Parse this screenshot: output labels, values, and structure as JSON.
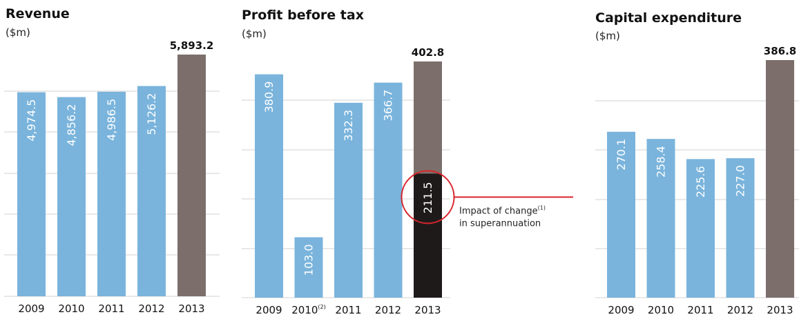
{
  "colors": {
    "bar_prior": "#7ab4dc",
    "bar_current": "#7c6f6b",
    "bar_impact": "#1f1a1a",
    "grid": "#d0d0d0",
    "highlight": "#d9252b"
  },
  "chart_data": [
    {
      "type": "bar",
      "title": "Revenue",
      "unit_label": "($m)",
      "categories": [
        "2009",
        "2010",
        "2011",
        "2012",
        "2013"
      ],
      "category_labels": [
        "2009",
        "2010",
        "2011",
        "2012",
        "2013"
      ],
      "values": [
        4974.5,
        4856.2,
        4986.5,
        5126.2,
        5893.2
      ],
      "value_labels": [
        "4,974.5",
        "4,856.2",
        "4,986.5",
        "5,126.2",
        "5,893.2"
      ],
      "ylim": [
        0,
        6000
      ],
      "grid": true
    },
    {
      "type": "bar",
      "title": "Profit before tax",
      "unit_label": "($m)",
      "categories": [
        "2009",
        "2010",
        "2011",
        "2012",
        "2013"
      ],
      "category_labels": [
        "2009",
        "2010",
        "2011",
        "2012",
        "2013"
      ],
      "category_footnotes": [
        "",
        "(2)",
        "",
        "",
        ""
      ],
      "values": [
        380.9,
        103.0,
        332.3,
        366.7,
        402.8
      ],
      "value_labels": [
        "380.9",
        "103.0",
        "332.3",
        "366.7",
        "402.8"
      ],
      "impact": {
        "category": "2013",
        "value": 211.5,
        "value_label": "211.5",
        "annotation_lines": [
          "Impact of change",
          "in superannuation"
        ],
        "annotation_footnote": "(1)"
      },
      "ylim": [
        0,
        430
      ],
      "grid": true
    },
    {
      "type": "bar",
      "title": "Capital expenditure",
      "unit_label": "($m)",
      "categories": [
        "2009",
        "2010",
        "2011",
        "2012",
        "2013"
      ],
      "category_labels": [
        "2009",
        "2010",
        "2011",
        "2012",
        "2013"
      ],
      "values": [
        270.1,
        258.4,
        225.6,
        227.0,
        386.8
      ],
      "value_labels": [
        "270.1",
        "258.4",
        "225.6",
        "227.0",
        "386.8"
      ],
      "ylim": [
        0,
        425
      ],
      "grid": true
    }
  ]
}
